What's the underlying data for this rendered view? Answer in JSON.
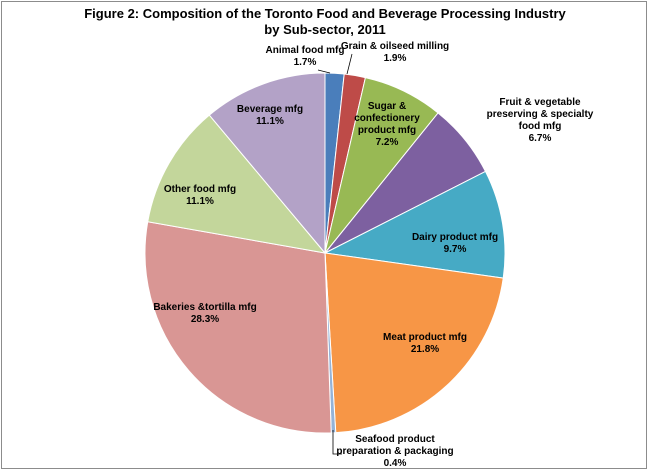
{
  "chart_data": {
    "type": "pie",
    "title_line1": "Figure 2: Composition of the Toronto Food and Beverage Processing Industry",
    "title_line2": "by Sub-sector, 2011",
    "slices": [
      {
        "name": "Animal food mfg",
        "label_lines": [
          "Animal food mfg"
        ],
        "value": 1.7,
        "value_label": "1.7%",
        "color": "#4a7ebb"
      },
      {
        "name": "Grain & oilseed milling",
        "label_lines": [
          "Grain & oilseed milling"
        ],
        "value": 1.9,
        "value_label": "1.9%",
        "color": "#be4b48"
      },
      {
        "name": "Sugar & confectionery product mfg",
        "label_lines": [
          "Sugar &",
          "confectionery",
          "product mfg"
        ],
        "value": 7.2,
        "value_label": "7.2%",
        "color": "#98b954"
      },
      {
        "name": "Fruit & vegetable preserving & specialty food mfg",
        "label_lines": [
          "Fruit & vegetable",
          "preserving & specialty",
          "food mfg"
        ],
        "value": 6.7,
        "value_label": "6.7%",
        "color": "#7d60a0"
      },
      {
        "name": "Dairy product mfg",
        "label_lines": [
          "Dairy product mfg"
        ],
        "value": 9.7,
        "value_label": "9.7%",
        "color": "#46aac5"
      },
      {
        "name": "Meat product mfg",
        "label_lines": [
          "Meat product mfg"
        ],
        "value": 21.8,
        "value_label": "21.8%",
        "color": "#f79646"
      },
      {
        "name": "Seafood product preparation & packaging",
        "label_lines": [
          "Seafood product",
          "preparation & packaging"
        ],
        "value": 0.4,
        "value_label": "0.4%",
        "color": "#95b3d7"
      },
      {
        "name": "Bakeries &tortilla mfg",
        "label_lines": [
          "Bakeries &tortilla mfg"
        ],
        "value": 28.3,
        "value_label": "28.3%",
        "color": "#d99694"
      },
      {
        "name": "Other food mfg",
        "label_lines": [
          "Other food mfg"
        ],
        "value": 11.1,
        "value_label": "11.1%",
        "color": "#c3d69b"
      },
      {
        "name": "Beverage mfg",
        "label_lines": [
          "Beverage mfg"
        ],
        "value": 11.1,
        "value_label": "11.1%",
        "color": "#b3a2c7"
      }
    ]
  }
}
